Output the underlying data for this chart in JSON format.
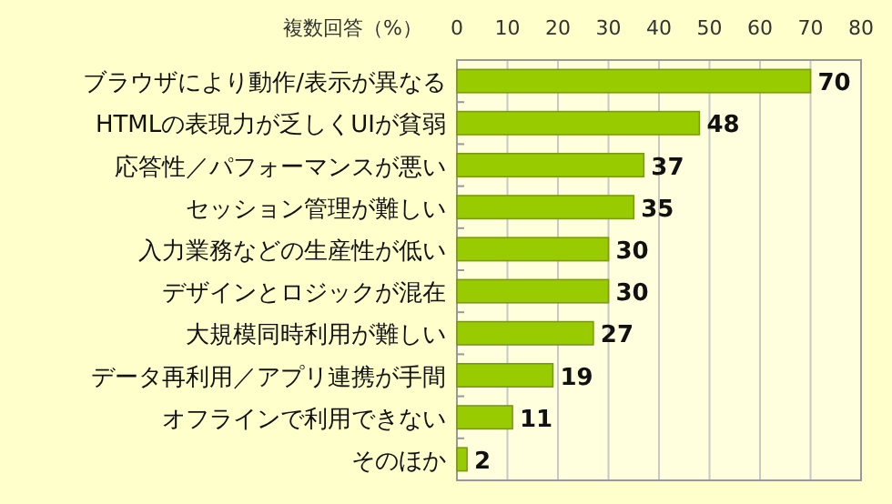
{
  "chart_data": {
    "type": "bar",
    "orientation": "horizontal",
    "categories": [
      "ブラウザにより動作/表示が異なる",
      "HTMLの表現力が乏しくUIが貧弱",
      "応答性／パフォーマンスが悪い",
      "セッション管理が難しい",
      "入力業務などの生産性が低い",
      "デザインとロジックが混在",
      "大規模同時利用が難しい",
      "データ再利用／アプリ連携が手間",
      "オフラインで利用できない",
      "そのほか"
    ],
    "values": [
      70,
      48,
      37,
      35,
      30,
      30,
      27,
      19,
      11,
      2
    ],
    "color": "#99cc00",
    "xlabel": "複数回答（%）",
    "xlim": [
      0,
      80
    ],
    "xticks": [
      0,
      10,
      20,
      30,
      40,
      50,
      60,
      70,
      80
    ],
    "grid": "x",
    "data_labels": true
  }
}
